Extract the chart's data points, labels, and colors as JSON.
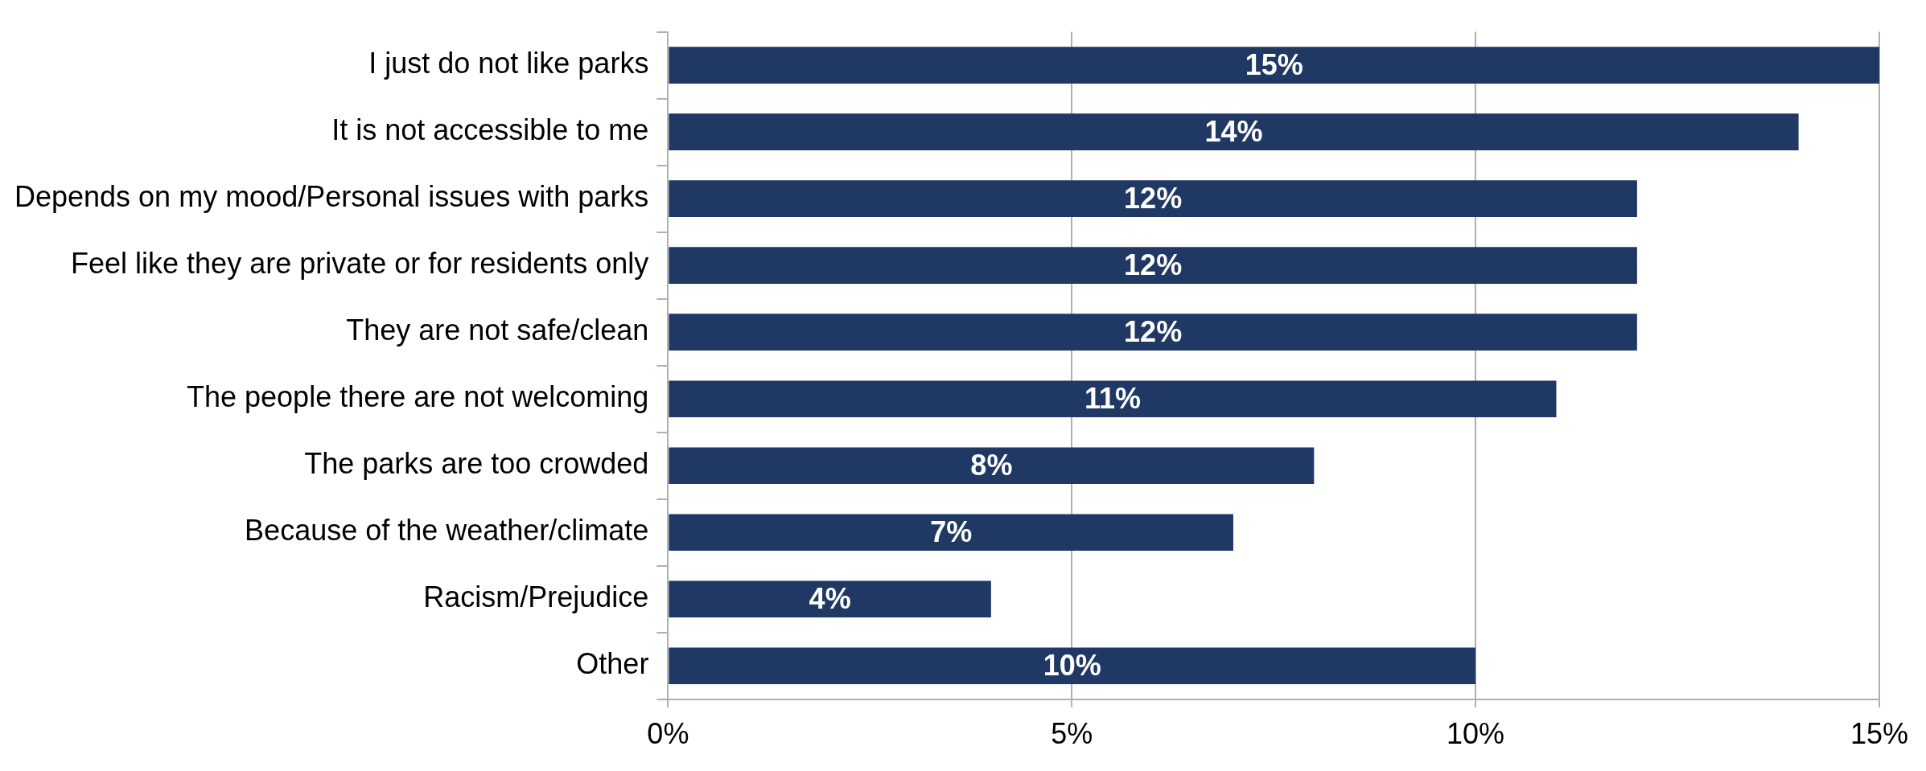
{
  "chart_data": {
    "type": "bar",
    "orientation": "horizontal",
    "categories": [
      "I just do not like parks",
      "It is not accessible to me",
      "Depends on my mood/Personal issues with parks",
      "Feel like they are private or for residents only",
      "They are not safe/clean",
      "The people there are not welcoming",
      "The parks are too crowded",
      "Because of the weather/climate",
      "Racism/Prejudice",
      "Other"
    ],
    "values": [
      15,
      14,
      12,
      12,
      12,
      11,
      8,
      7,
      4,
      10
    ],
    "color": "#203864",
    "xlim": [
      0,
      15
    ],
    "xticks": [
      {
        "value": 0,
        "label": "0%"
      },
      {
        "value": 5,
        "label": "5%"
      },
      {
        "value": 10,
        "label": "10%"
      },
      {
        "value": 15,
        "label": "15%"
      }
    ],
    "value_labels": [
      "15%",
      "14%",
      "12%",
      "12%",
      "12%",
      "11%",
      "8%",
      "7%",
      "4%",
      "10%"
    ],
    "grid": "x",
    "legend": false
  }
}
